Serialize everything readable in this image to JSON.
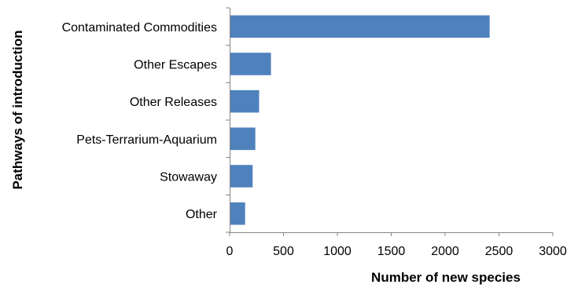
{
  "chart_data": {
    "type": "bar",
    "orientation": "horizontal",
    "categories": [
      "Contaminated Commodities",
      "Other Escapes",
      "Other Releases",
      "Pets-Terrarium-Aquarium",
      "Stowaway",
      "Other"
    ],
    "values": [
      2410,
      380,
      270,
      235,
      210,
      140
    ],
    "xlabel": "Number of new species",
    "ylabel": "Pathways of introduction",
    "xlim": [
      0,
      3000
    ],
    "xticks": [
      0,
      500,
      1000,
      1500,
      2000,
      2500,
      3000
    ],
    "grid": false,
    "legend": "none",
    "bar_color": "#4F81BD"
  }
}
